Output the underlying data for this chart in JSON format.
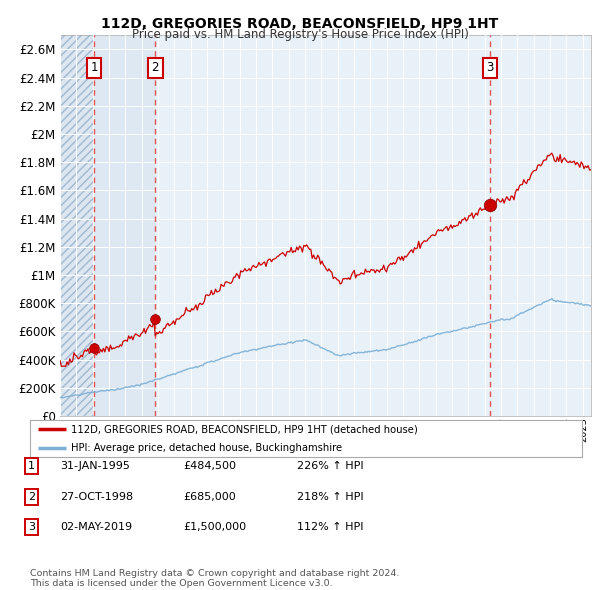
{
  "title": "112D, GREGORIES ROAD, BEACONSFIELD, HP9 1HT",
  "subtitle": "Price paid vs. HM Land Registry's House Price Index (HPI)",
  "background_color": "#ffffff",
  "plot_bg_color": "#dce6f1",
  "plot_bg_color2": "#e8eef7",
  "hatch_color": "#b0c4de",
  "grid_color": "#ffffff",
  "sale_dates_num": [
    1995.08,
    1998.83,
    2019.33
  ],
  "sale_prices": [
    484500,
    685000,
    1500000
  ],
  "sale_labels": [
    "1",
    "2",
    "3"
  ],
  "legend_line1": "112D, GREGORIES ROAD, BEACONSFIELD, HP9 1HT (detached house)",
  "legend_line2": "HPI: Average price, detached house, Buckinghamshire",
  "table_data": [
    {
      "num": "1",
      "date": "31-JAN-1995",
      "price": "£484,500",
      "hpi": "226% ↑ HPI"
    },
    {
      "num": "2",
      "date": "27-OCT-1998",
      "price": "£685,000",
      "hpi": "218% ↑ HPI"
    },
    {
      "num": "3",
      "date": "02-MAY-2019",
      "price": "£1,500,000",
      "hpi": "112% ↑ HPI"
    }
  ],
  "footer": "Contains HM Land Registry data © Crown copyright and database right 2024.\nThis data is licensed under the Open Government Licence v3.0.",
  "ylim": [
    0,
    2700000
  ],
  "xlim_start": 1993.0,
  "xlim_end": 2025.5,
  "red_line_color": "#cc0000",
  "blue_line_color": "#7bafd4",
  "sale_dot_color": "#cc0000",
  "vline_color": "#dd4444",
  "label_box_color": "#ffffff",
  "label_box_edge": "#cc0000"
}
